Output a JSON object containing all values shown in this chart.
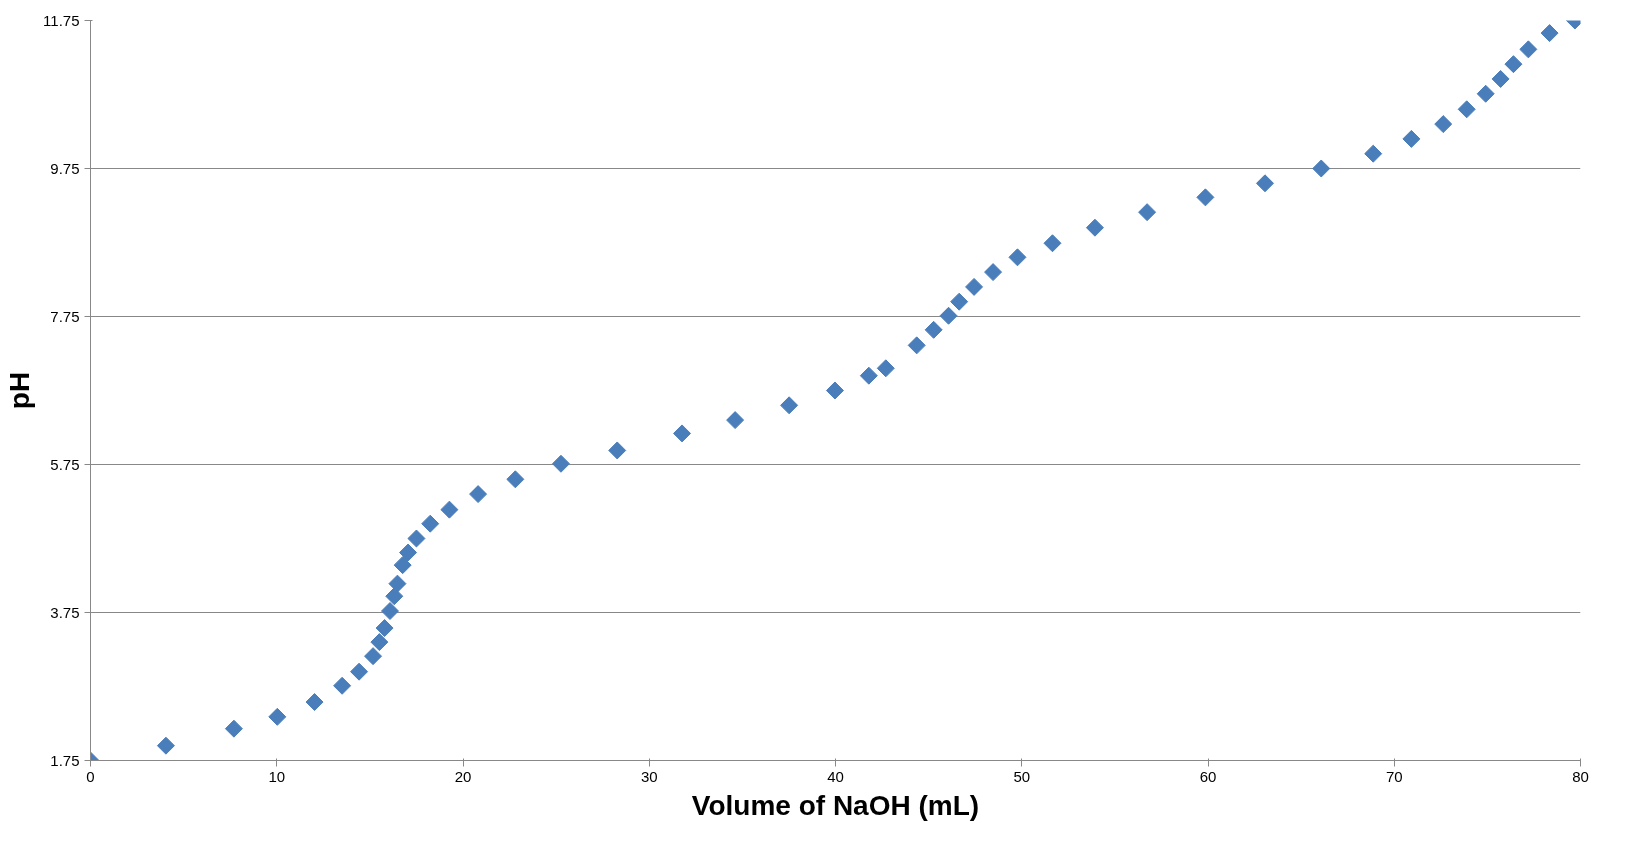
{
  "chart_data": {
    "type": "scatter",
    "xlabel": "Volume of NaOH (mL)",
    "ylabel": "pH",
    "x": [
      0,
      4.05,
      7.7,
      10.03,
      12.03,
      13.51,
      14.42,
      15.17,
      15.51,
      15.79,
      16.08,
      16.31,
      16.48,
      16.76,
      17.05,
      17.5,
      18.24,
      19.27,
      20.81,
      22.81,
      25.26,
      28.28,
      31.76,
      34.61,
      37.51,
      39.97,
      41.79,
      42.7,
      44.36,
      45.27,
      46.07,
      46.64,
      47.44,
      48.46,
      49.77,
      51.65,
      53.93,
      56.73,
      59.86,
      63.06,
      66.08,
      68.87,
      70.92,
      72.63,
      73.89,
      74.91,
      75.71,
      76.4,
      77.2,
      78.34,
      79.7
    ],
    "series": [
      {
        "color": "#4a7ebb",
        "values": [
          1.75,
          1.95,
          2.18,
          2.34,
          2.54,
          2.76,
          2.95,
          3.16,
          3.35,
          3.54,
          3.77,
          3.97,
          4.14,
          4.39,
          4.56,
          4.75,
          4.95,
          5.14,
          5.35,
          5.55,
          5.76,
          5.94,
          6.17,
          6.35,
          6.55,
          6.75,
          6.95,
          7.05,
          7.36,
          7.57,
          7.76,
          7.95,
          8.15,
          8.35,
          8.55,
          8.74,
          8.95,
          9.16,
          9.36,
          9.55,
          9.75,
          9.95,
          10.15,
          10.35,
          10.55,
          10.76,
          10.96,
          11.16,
          11.36,
          11.58,
          11.75
        ]
      }
    ],
    "xlim": [
      0,
      80
    ],
    "ylim": [
      1.75,
      11.75
    ],
    "xticks": [
      0,
      10,
      20,
      30,
      40,
      50,
      60,
      70,
      80
    ],
    "yticks": [
      1.75,
      3.75,
      5.75,
      7.75,
      9.75,
      11.75
    ],
    "grid": "y",
    "marker": "diamond"
  }
}
